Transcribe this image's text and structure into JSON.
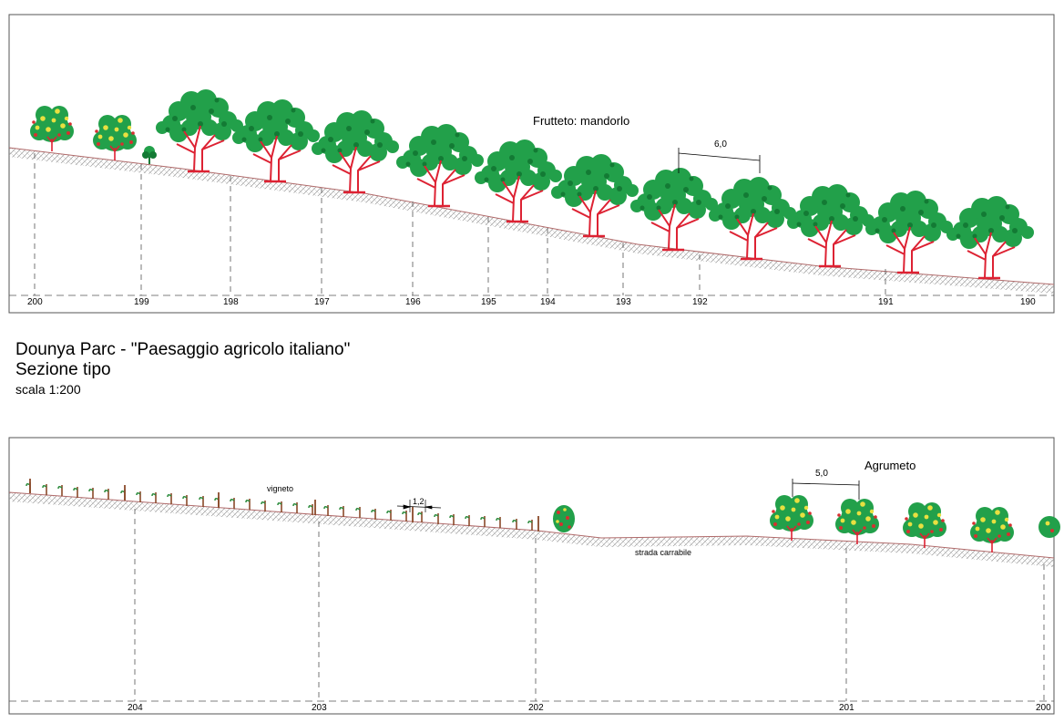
{
  "colors": {
    "frame": "#555555",
    "ground": "#b06a6a",
    "hatch": "#9a9a9a",
    "trunk": "#dd2233",
    "foliage": "#22a04a",
    "foliage_dark": "#137a34",
    "citrus_fruit_yellow": "#e8e040",
    "citrus_fruit_red": "#d63030",
    "vine_post": "#8a4a2a",
    "vine_leaf": "#2a8a3a",
    "dashed_line": "#555555"
  },
  "title_block": {
    "title": "Dounya Parc - \"Paesaggio agricolo italiano\"",
    "subtitle": "Sezione tipo",
    "scale": "scala 1:200"
  },
  "section_top": {
    "label": "Frutteto: mandorlo",
    "spacing_dimension": "6,0",
    "chainage": [
      "200",
      "199",
      "198",
      "197",
      "196",
      "195",
      "194",
      "193",
      "192",
      "191",
      "190"
    ],
    "tree_icons": [
      "citrus-tree-icon",
      "citrus-tree-icon",
      "shrub-icon",
      "almond-tree-icon"
    ],
    "almond_tree_count": 11
  },
  "section_bottom": {
    "label_vineyard": "vigneto",
    "label_road": "strada carrabile",
    "label_orchard": "Agrumeto",
    "vine_spacing_dimension": "1,2",
    "tree_spacing_dimension": "5,0",
    "chainage": [
      "204",
      "203",
      "202",
      "201",
      "200"
    ],
    "citrus_tree_count": 5
  }
}
